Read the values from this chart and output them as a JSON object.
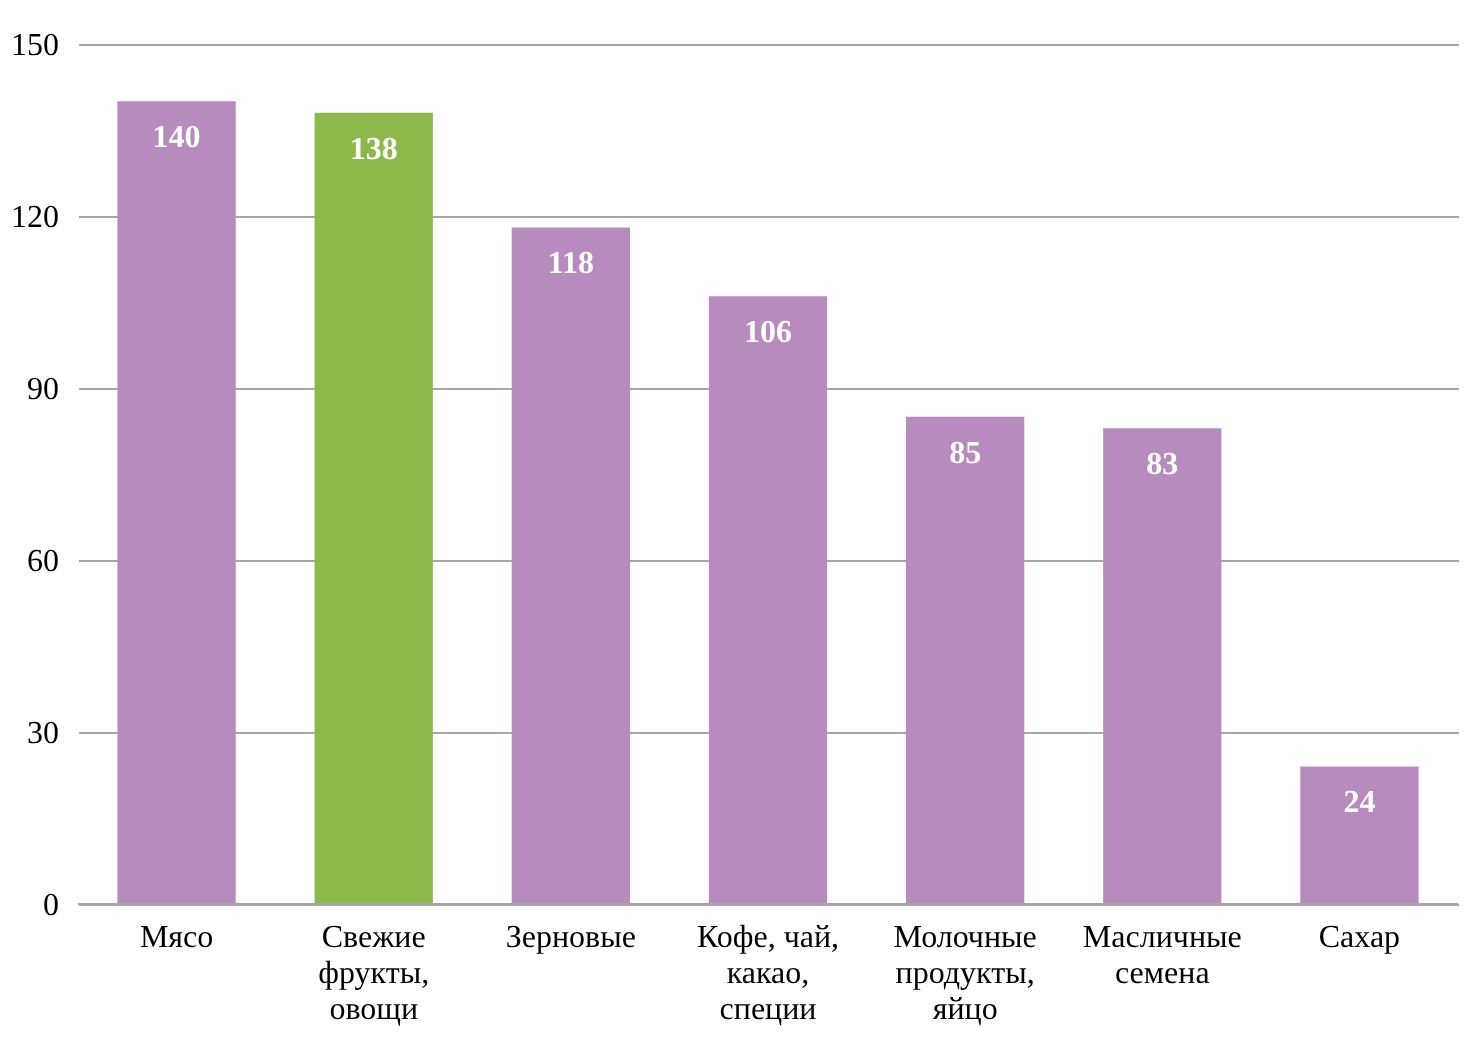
{
  "chart_data": {
    "type": "bar",
    "categories": [
      "Мясо",
      "Свежие фрукты, овощи",
      "Зерновые",
      "Кофе, чай, какао, специи",
      "Молочные продукты, яйцо",
      "Масличные семена",
      "Сахар"
    ],
    "values": [
      140,
      138,
      118,
      106,
      85,
      83,
      24
    ],
    "colors": [
      "#b88bbf",
      "#8db84a",
      "#b88bbf",
      "#b88bbf",
      "#b88bbf",
      "#b88bbf",
      "#b88bbf"
    ],
    "ylim": [
      0,
      150
    ],
    "yticks": [
      0,
      30,
      60,
      90,
      120,
      150
    ],
    "grid": "y",
    "data_labels": true
  }
}
